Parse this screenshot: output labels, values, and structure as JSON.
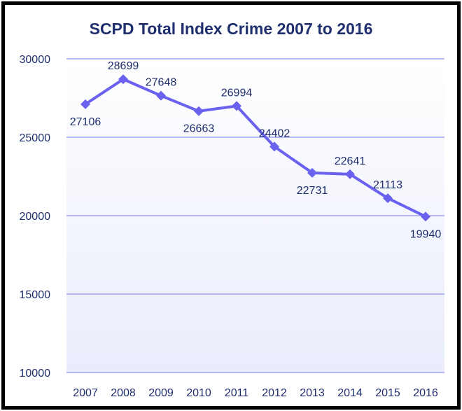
{
  "chart_data": {
    "type": "line",
    "title": "SCPD Total Index Crime 2007 to 2016",
    "xlabel": "",
    "ylabel": "",
    "categories": [
      "2007",
      "2008",
      "2009",
      "2010",
      "2011",
      "2012",
      "2013",
      "2014",
      "2015",
      "2016"
    ],
    "series": [
      {
        "values": [
          27106,
          28699,
          27648,
          26663,
          26994,
          24402,
          22731,
          22641,
          21113,
          19940
        ]
      }
    ],
    "ylim": [
      10000,
      30000
    ],
    "yticks": [
      "10000",
      "15000",
      "20000",
      "25000",
      "30000"
    ],
    "grid": true,
    "legend": "none",
    "line_color": "#6a62ee",
    "text_color": "#1f2f6e",
    "grid_color": "#8f94e8"
  }
}
